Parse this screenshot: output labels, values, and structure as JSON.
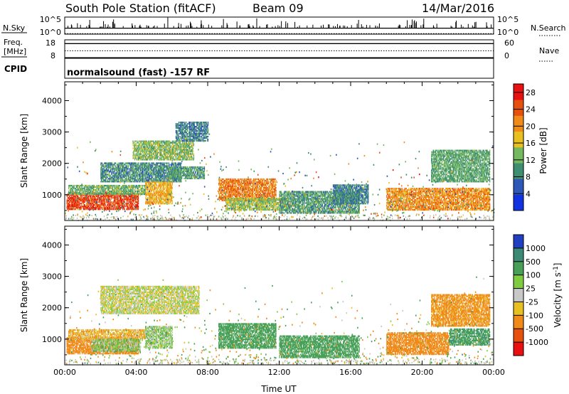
{
  "header": {
    "station": "South Pole Station (fitACF)",
    "beam": "Beam 09",
    "date": "14/Mar/2016"
  },
  "chart_data": [
    {
      "id": "nsky-nsearch",
      "type": "line",
      "labels": {
        "left": "N.Sky",
        "right": "N.Search",
        "left_ticks": [
          "10^5",
          "10^0"
        ],
        "right_ticks": [
          "10^5",
          "10^0"
        ]
      },
      "series": [
        {
          "name": "N.Sky",
          "style": "solid",
          "x": [
            "00:00",
            "24:00"
          ],
          "y": [
            80,
            80
          ]
        },
        {
          "name": "N.Search",
          "style": "dotted",
          "x": [
            "00:00",
            "24:00"
          ],
          "y": [
            1.5,
            1.5
          ]
        }
      ]
    },
    {
      "id": "freq-nave",
      "type": "line",
      "labels": {
        "left_lines": [
          "Freq.",
          "[MHz]"
        ],
        "right": "Nave",
        "left_ticks": [
          "18",
          "8"
        ],
        "right_ticks": [
          "60",
          "0"
        ]
      },
      "series": [
        {
          "name": "Freq.",
          "style": "solid",
          "x": [
            "00:00",
            "24:00"
          ],
          "y": [
            16.2,
            16.2
          ]
        },
        {
          "name": "Nave",
          "style": "dotted",
          "x": [
            "00:00",
            "24:00"
          ],
          "y": [
            24,
            24
          ]
        }
      ]
    },
    {
      "id": "cpid",
      "type": "table",
      "label": "CPID",
      "text": "normalsound (fast) -157 RF"
    },
    {
      "id": "power",
      "type": "heatmap",
      "ylabel": "Slant Range [km]",
      "yticks": [
        "1000",
        "2000",
        "3000",
        "4000"
      ],
      "ylim": [
        180,
        4600
      ],
      "colorbar": {
        "label": "Power [dB]",
        "ticks": [
          "4",
          "8",
          "12",
          "16",
          "20",
          "24",
          "28"
        ],
        "range": [
          0,
          30
        ],
        "colors": [
          "#1032e0",
          "#2e58b8",
          "#3e8e72",
          "#74b860",
          "#e8c020",
          "#f08a18",
          "#e85010",
          "#e81010"
        ]
      },
      "regions": [
        {
          "t": [
            0.1,
            4.1
          ],
          "r": [
            520,
            1050
          ],
          "power": 27
        },
        {
          "t": [
            0.2,
            4.5
          ],
          "r": [
            1000,
            1300
          ],
          "power": 13
        },
        {
          "t": [
            2.0,
            6.5
          ],
          "r": [
            1400,
            2000
          ],
          "power": 10
        },
        {
          "t": [
            3.8,
            7.2
          ],
          "r": [
            2100,
            2700
          ],
          "power": 14
        },
        {
          "t": [
            4.5,
            6.0
          ],
          "r": [
            700,
            1400
          ],
          "power": 20
        },
        {
          "t": [
            5.8,
            7.8
          ],
          "r": [
            1500,
            1900
          ],
          "power": 11
        },
        {
          "t": [
            6.2,
            8.0
          ],
          "r": [
            2700,
            3300
          ],
          "power": 9
        },
        {
          "t": [
            8.6,
            11.8
          ],
          "r": [
            800,
            1500
          ],
          "power": 23
        },
        {
          "t": [
            9.0,
            12.5
          ],
          "r": [
            500,
            900
          ],
          "power": 15
        },
        {
          "t": [
            12.0,
            16.5
          ],
          "r": [
            400,
            1100
          ],
          "power": 11
        },
        {
          "t": [
            15.0,
            17.0
          ],
          "r": [
            700,
            1300
          ],
          "power": 9
        },
        {
          "t": [
            18.0,
            23.8
          ],
          "r": [
            500,
            1200
          ],
          "power": 22
        },
        {
          "t": [
            20.5,
            23.8
          ],
          "r": [
            1400,
            2400
          ],
          "power": 12
        }
      ]
    },
    {
      "id": "velocity",
      "type": "heatmap",
      "ylabel": "Slant Range [km]",
      "yticks": [
        "1000",
        "2000",
        "3000",
        "4000"
      ],
      "ylim": [
        180,
        4600
      ],
      "xlabel": "Time UT",
      "xticks": [
        "00:00",
        "04:00",
        "08:00",
        "12:00",
        "16:00",
        "20:00",
        "00:00"
      ],
      "xlim": [
        0,
        24
      ],
      "colorbar": {
        "label": "Velocity [m s^-1]",
        "ticks": [
          "1000",
          "500",
          "100",
          "25",
          "-25",
          "-100",
          "-500",
          "-1000"
        ],
        "colors": [
          "#2040c0",
          "#3a8a76",
          "#48a058",
          "#80cc40",
          "#c8c8c8",
          "#e8c020",
          "#f08a18",
          "#e85010",
          "#e81010"
        ]
      },
      "regions": [
        {
          "t": [
            0.1,
            4.1
          ],
          "r": [
            520,
            1050
          ],
          "velocity": -250
        },
        {
          "t": [
            0.2,
            4.5
          ],
          "r": [
            1000,
            1300
          ],
          "velocity": -80
        },
        {
          "t": [
            1.5,
            4.2
          ],
          "r": [
            600,
            1000
          ],
          "velocity": 60
        },
        {
          "t": [
            2.0,
            7.5
          ],
          "r": [
            1800,
            2700
          ],
          "velocity": 0
        },
        {
          "t": [
            4.5,
            6.0
          ],
          "r": [
            700,
            1400
          ],
          "velocity": 50
        },
        {
          "t": [
            8.6,
            11.8
          ],
          "r": [
            700,
            1500
          ],
          "velocity": 400
        },
        {
          "t": [
            12.0,
            16.5
          ],
          "r": [
            400,
            1100
          ],
          "velocity": 300
        },
        {
          "t": [
            18.0,
            21.5
          ],
          "r": [
            500,
            1200
          ],
          "velocity": -300
        },
        {
          "t": [
            20.5,
            23.8
          ],
          "r": [
            1400,
            2400
          ],
          "velocity": -150
        },
        {
          "t": [
            21.5,
            23.8
          ],
          "r": [
            800,
            1300
          ],
          "velocity": 450
        }
      ]
    }
  ]
}
